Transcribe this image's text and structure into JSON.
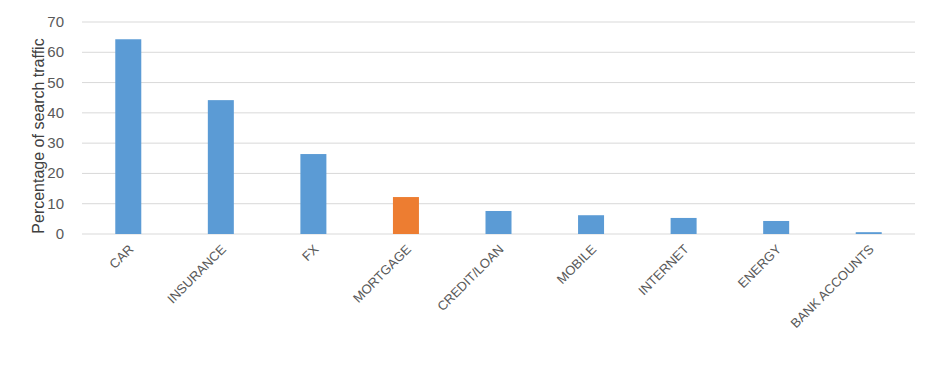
{
  "chart_data": {
    "type": "bar",
    "ylabel": "Percentage of search traffic",
    "categories": [
      "CAR",
      "INSURANCE",
      "FX",
      "MORTGAGE",
      "CREDIT/LOAN",
      "MOBILE",
      "INTERNET",
      "ENERGY",
      "BANK ACCOUNTS"
    ],
    "values": [
      64.3,
      44.2,
      26.4,
      12.2,
      7.6,
      6.2,
      5.3,
      4.3,
      0.6
    ],
    "colors": [
      "#5b9bd5",
      "#5b9bd5",
      "#5b9bd5",
      "#ed7d31",
      "#5b9bd5",
      "#5b9bd5",
      "#5b9bd5",
      "#5b9bd5",
      "#5b9bd5"
    ],
    "ylim": [
      0,
      70
    ],
    "yticks": [
      0,
      10,
      20,
      30,
      40,
      50,
      60,
      70
    ],
    "grid": true
  }
}
